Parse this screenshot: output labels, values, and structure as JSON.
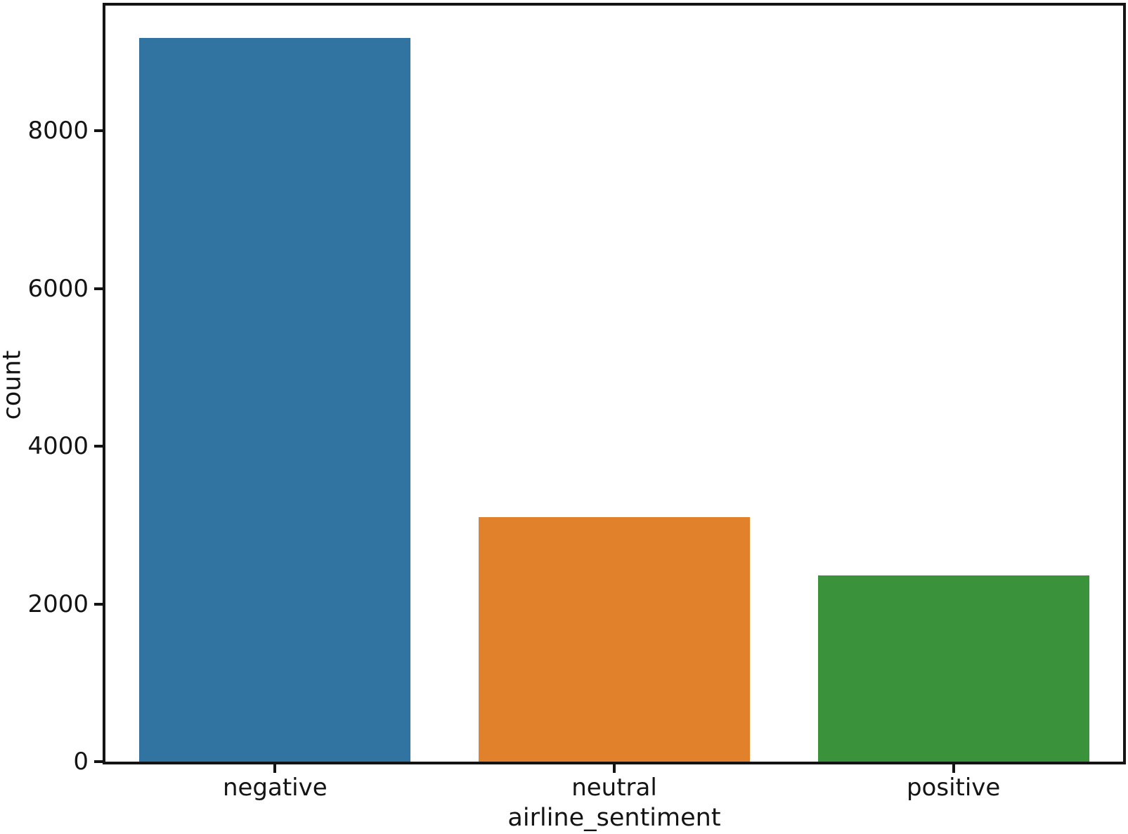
{
  "chart_data": {
    "type": "bar",
    "categories": [
      "negative",
      "neutral",
      "positive"
    ],
    "values": [
      9178,
      3099,
      2363
    ],
    "bar_colors": [
      "#3274a1",
      "#e1812c",
      "#3a923a"
    ],
    "title": "",
    "xlabel": "airline_sentiment",
    "ylabel": "count",
    "ylim": [
      0,
      9590
    ],
    "yticks": [
      0,
      2000,
      4000,
      6000,
      8000
    ],
    "grid": false,
    "legend_position": "none",
    "axis_color": "#141414",
    "bar_width_fraction": 0.8
  }
}
